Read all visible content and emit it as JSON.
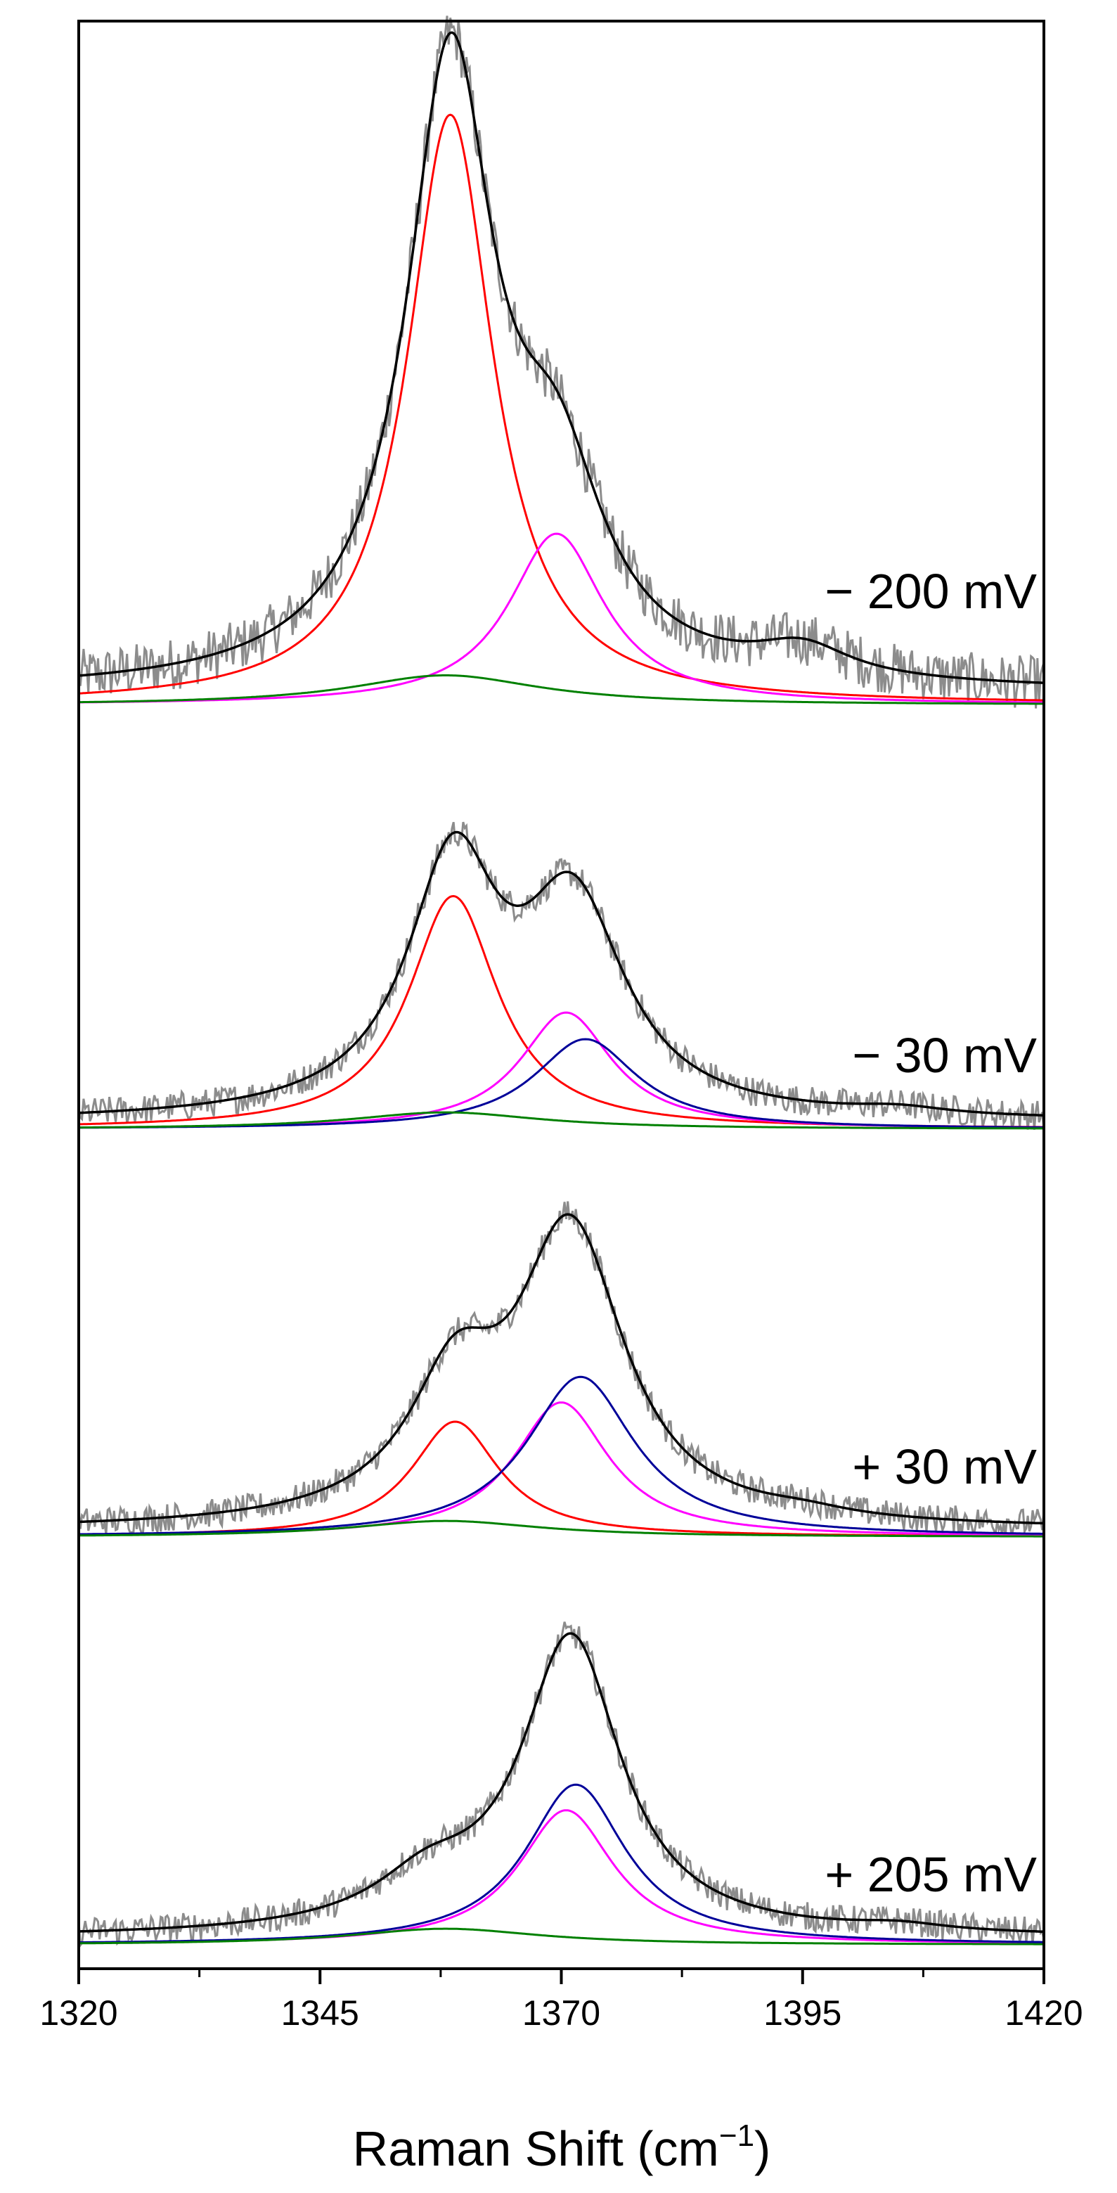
{
  "chart_data": {
    "type": "line",
    "xlabel": "Raman Shift (cm",
    "xlabel_sup": "−1",
    "xlabel_end": ")",
    "ylabel": "",
    "xlim": [
      1320,
      1420
    ],
    "xticks_major": [
      1320,
      1345,
      1370,
      1395,
      1420
    ],
    "xticks_minor": [
      1332.5,
      1357.5,
      1382.5,
      1407.5
    ],
    "grid": false,
    "yticks": false,
    "series_colors": {
      "raw": "#8c8c8c",
      "fit": "#000000",
      "red": "#ff0000",
      "magenta": "#ff00ff",
      "blue": "#000099",
      "green": "#008000"
    },
    "panels": [
      {
        "label": "− 200 mV",
        "baseline": 0.03,
        "noise": 0.045,
        "ylim": [
          0,
          1.12
        ],
        "components": [
          {
            "color": "red",
            "center": 1358.5,
            "width": 5.4,
            "amp": 1.0
          },
          {
            "color": "magenta",
            "center": 1369.5,
            "width": 6.0,
            "amp": 0.29
          },
          {
            "color": "green",
            "center": 1358.0,
            "width": 12.0,
            "amp": 0.05
          },
          {
            "color": "fit_extra",
            "center": 1395.0,
            "width": 6.0,
            "amp": 0.05
          }
        ]
      },
      {
        "label": "− 30 mV",
        "baseline": 0.03,
        "noise": 0.045,
        "ylim": [
          0,
          1.12
        ],
        "components": [
          {
            "color": "red",
            "center": 1358.8,
            "width": 5.6,
            "amp": 0.7
          },
          {
            "color": "magenta",
            "center": 1370.5,
            "width": 5.8,
            "amp": 0.35
          },
          {
            "color": "blue",
            "center": 1372.5,
            "width": 6.5,
            "amp": 0.27
          },
          {
            "color": "green",
            "center": 1358.0,
            "width": 12.0,
            "amp": 0.05
          },
          {
            "color": "fit_extra",
            "center": 1405.0,
            "width": 6.0,
            "amp": 0.02
          }
        ]
      },
      {
        "label": "+ 30 mV",
        "baseline": 0.03,
        "noise": 0.045,
        "ylim": [
          0,
          1.12
        ],
        "components": [
          {
            "color": "red",
            "center": 1359.0,
            "width": 5.5,
            "amp": 0.36
          },
          {
            "color": "magenta",
            "center": 1370.0,
            "width": 6.0,
            "amp": 0.42
          },
          {
            "color": "blue",
            "center": 1372.0,
            "width": 6.8,
            "amp": 0.5
          },
          {
            "color": "green",
            "center": 1358.0,
            "width": 12.0,
            "amp": 0.05
          },
          {
            "color": "fit_extra",
            "center": 1395.0,
            "width": 6.0,
            "amp": 0.02
          }
        ]
      },
      {
        "label": "+ 205 mV",
        "baseline": 0.03,
        "noise": 0.045,
        "ylim": [
          0,
          1.12
        ],
        "components": [
          {
            "color": "magenta",
            "center": 1370.5,
            "width": 6.0,
            "amp": 0.42
          },
          {
            "color": "blue",
            "center": 1371.5,
            "width": 6.3,
            "amp": 0.5
          },
          {
            "color": "green",
            "center": 1358.0,
            "width": 12.0,
            "amp": 0.05
          },
          {
            "color": "fit_extra",
            "center": 1356.0,
            "width": 6.0,
            "amp": 0.1
          },
          {
            "color": "fit_extra",
            "center": 1405.0,
            "width": 6.0,
            "amp": 0.02
          }
        ]
      }
    ]
  }
}
